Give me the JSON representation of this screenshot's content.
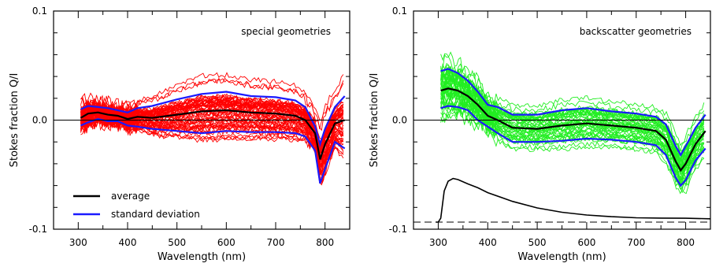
{
  "chart_data": [
    {
      "type": "line",
      "annotation": "special geometries",
      "xlabel": "Wavelength (nm)",
      "ylabel": "Stokes fraction Q/I",
      "xlim": [
        250,
        850
      ],
      "ylim": [
        -0.1,
        0.1
      ],
      "xticks": [
        300,
        400,
        500,
        600,
        700,
        800
      ],
      "yticks": [
        -0.1,
        0.0,
        0.1
      ],
      "ytick_labels": [
        "-0.1",
        "0.0",
        "0.1"
      ],
      "reference_line_y": 0.0,
      "colors": {
        "individual": "#ff0000",
        "average": "#000000",
        "std": "#1a1aff"
      },
      "legend": {
        "position": "bottom-left",
        "entries": [
          "average",
          "standard deviation"
        ]
      },
      "x": [
        305,
        320,
        340,
        360,
        380,
        400,
        420,
        450,
        500,
        550,
        600,
        650,
        700,
        740,
        760,
        780,
        790,
        800,
        820,
        840
      ],
      "series": [
        {
          "name": "average",
          "values": [
            0.002,
            0.006,
            0.007,
            0.005,
            0.004,
            0.001,
            0.003,
            0.002,
            0.005,
            0.008,
            0.009,
            0.007,
            0.006,
            0.004,
            0.0,
            -0.012,
            -0.036,
            -0.022,
            -0.003,
            0.0
          ]
        },
        {
          "name": "standard deviation",
          "role": "upper",
          "values": [
            0.01,
            0.013,
            0.012,
            0.011,
            0.009,
            0.007,
            0.011,
            0.013,
            0.019,
            0.024,
            0.026,
            0.022,
            0.021,
            0.018,
            0.012,
            -0.006,
            -0.022,
            -0.008,
            0.012,
            0.022
          ]
        },
        {
          "name": "standard deviation",
          "role": "lower",
          "values": [
            -0.005,
            -0.002,
            0.001,
            -0.001,
            -0.001,
            -0.005,
            -0.006,
            -0.008,
            -0.01,
            -0.012,
            -0.01,
            -0.011,
            -0.011,
            -0.012,
            -0.015,
            -0.028,
            -0.058,
            -0.045,
            -0.02,
            -0.026
          ]
        }
      ],
      "spread_lines": 60,
      "spread_seed": 7
    },
    {
      "type": "line",
      "annotation": "backscatter geometries",
      "xlabel": "Wavelength (nm)",
      "ylabel": "Stokes fraction Q/I",
      "xlim": [
        250,
        850
      ],
      "ylim": [
        -0.1,
        0.1
      ],
      "xticks": [
        300,
        400,
        500,
        600,
        700,
        800
      ],
      "yticks": [
        -0.1,
        0.0,
        0.1
      ],
      "ytick_labels": [
        "-0.1",
        "0.0",
        "0.1"
      ],
      "reference_line_y": 0.0,
      "dashed_line_y": -0.0935,
      "colors": {
        "individual": "#22ee22",
        "average": "#000000",
        "std": "#1a1aff"
      },
      "x": [
        305,
        320,
        340,
        360,
        380,
        400,
        420,
        450,
        500,
        550,
        600,
        650,
        700,
        740,
        760,
        780,
        790,
        800,
        820,
        840
      ],
      "series": [
        {
          "name": "average",
          "values": [
            0.027,
            0.029,
            0.027,
            0.022,
            0.014,
            0.004,
            0.0,
            -0.007,
            -0.008,
            -0.005,
            -0.003,
            -0.005,
            -0.007,
            -0.01,
            -0.018,
            -0.038,
            -0.046,
            -0.04,
            -0.022,
            -0.01
          ]
        },
        {
          "name": "standard deviation",
          "role": "upper",
          "values": [
            0.045,
            0.047,
            0.043,
            0.036,
            0.026,
            0.014,
            0.012,
            0.005,
            0.005,
            0.009,
            0.011,
            0.008,
            0.006,
            0.003,
            -0.004,
            -0.024,
            -0.032,
            -0.024,
            -0.007,
            0.005
          ]
        },
        {
          "name": "standard deviation",
          "role": "lower",
          "values": [
            0.011,
            0.013,
            0.012,
            0.009,
            0.0,
            -0.006,
            -0.012,
            -0.02,
            -0.02,
            -0.019,
            -0.017,
            -0.018,
            -0.02,
            -0.023,
            -0.032,
            -0.053,
            -0.06,
            -0.055,
            -0.037,
            -0.026
          ]
        },
        {
          "name": "reference spectrum",
          "x": [
            295,
            300,
            305,
            312,
            320,
            330,
            340,
            360,
            380,
            400,
            450,
            500,
            550,
            600,
            650,
            700,
            750,
            800,
            850
          ],
          "values": [
            -0.0935,
            -0.0935,
            -0.09,
            -0.065,
            -0.056,
            -0.0535,
            -0.0545,
            -0.0585,
            -0.062,
            -0.0665,
            -0.0745,
            -0.0805,
            -0.0845,
            -0.087,
            -0.0885,
            -0.0895,
            -0.0898,
            -0.09,
            -0.0905
          ]
        }
      ],
      "spread_lines": 45,
      "spread_seed": 13
    }
  ]
}
